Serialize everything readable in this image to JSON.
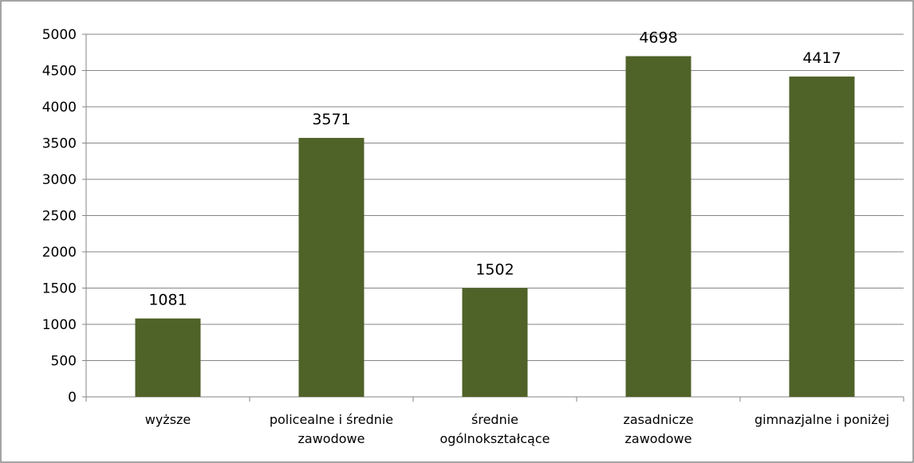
{
  "chart_data": {
    "type": "bar",
    "categories": [
      "wyższe",
      "policealne i średnie\nzawodowe",
      "średnie\nogólnokształcące",
      "zasadnicze\nzawodowe",
      "gimnazjalne i poniżej"
    ],
    "values": [
      1081,
      3571,
      1502,
      4698,
      4417
    ],
    "color": "#4f6228",
    "ylim": [
      0,
      5000
    ],
    "yticks": [
      0,
      500,
      1000,
      1500,
      2000,
      2500,
      3000,
      3500,
      4000,
      4500,
      5000
    ],
    "grid": true
  }
}
